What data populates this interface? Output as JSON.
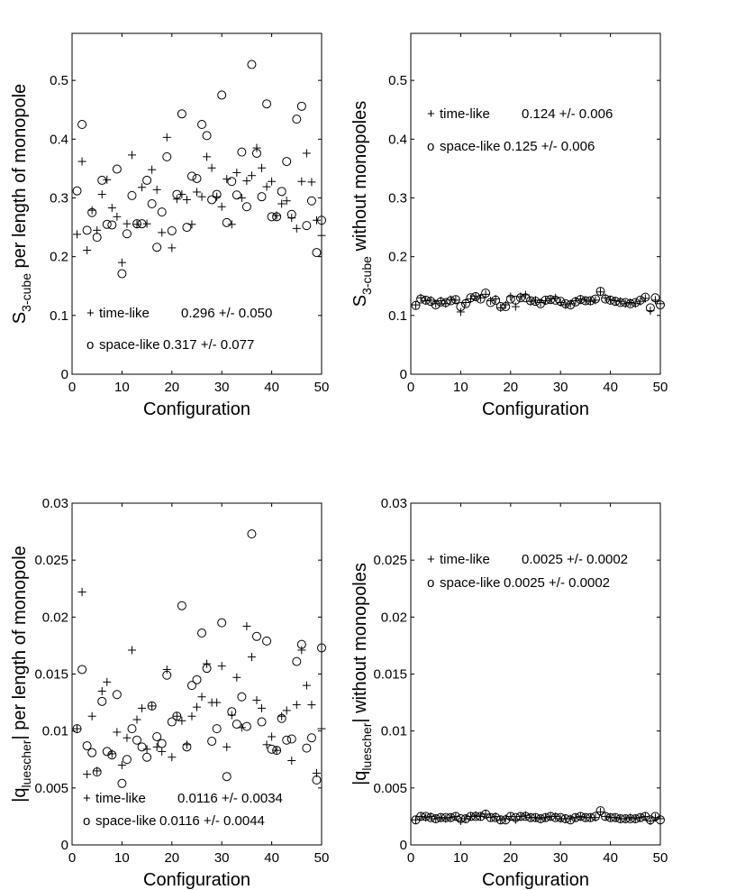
{
  "chart_data": [
    {
      "type": "scatter",
      "panel": "top-left",
      "xlabel": "Configuration",
      "ylabel": {
        "main": "S",
        "sub": "3-cube",
        "rest": " per length of monopole"
      },
      "xlim": [
        0,
        50
      ],
      "ylim": [
        0,
        0.58
      ],
      "xticks": [
        0,
        10,
        20,
        30,
        40,
        50
      ],
      "xtick_labels": [
        "0",
        "10",
        "20",
        "30",
        "40",
        "50"
      ],
      "yticks": [
        0,
        0.1,
        0.2,
        0.3,
        0.4,
        0.5
      ],
      "ytick_labels": [
        "0",
        "0.1",
        "0.2",
        "0.3",
        "0.4",
        "0.5"
      ],
      "legend": [
        {
          "marker": "+",
          "label": "time-like",
          "stat": "0.296 +/- 0.050"
        },
        {
          "marker": "o",
          "label": "space-like",
          "stat": "0.317 +/- 0.077"
        }
      ],
      "legend_position": "bottom-left",
      "series": [
        {
          "name": "time-like",
          "marker": "+",
          "x": [
            1,
            2,
            3,
            4,
            5,
            6,
            7,
            8,
            9,
            10,
            11,
            12,
            13,
            14,
            15,
            16,
            17,
            18,
            19,
            20,
            21,
            22,
            23,
            24,
            25,
            26,
            27,
            28,
            29,
            30,
            31,
            32,
            33,
            34,
            35,
            36,
            37,
            38,
            39,
            40,
            41,
            42,
            43,
            44,
            45,
            46,
            47,
            48,
            49,
            50
          ],
          "y": [
            0.238,
            0.362,
            0.211,
            0.279,
            0.245,
            0.306,
            0.331,
            0.283,
            0.268,
            0.19,
            0.256,
            0.373,
            0.255,
            0.318,
            0.256,
            0.348,
            0.314,
            0.241,
            0.403,
            0.215,
            0.298,
            0.306,
            0.297,
            0.255,
            0.31,
            0.302,
            0.37,
            0.351,
            0.302,
            0.285,
            0.332,
            0.255,
            0.343,
            0.3,
            0.329,
            0.338,
            0.385,
            0.351,
            0.319,
            0.328,
            0.27,
            0.29,
            0.295,
            0.266,
            0.248,
            0.328,
            0.376,
            0.327,
            0.262,
            0.236
          ]
        },
        {
          "name": "space-like",
          "marker": "o",
          "x": [
            1,
            2,
            3,
            4,
            5,
            6,
            7,
            8,
            9,
            10,
            11,
            12,
            13,
            14,
            15,
            16,
            17,
            18,
            19,
            20,
            21,
            22,
            23,
            24,
            25,
            26,
            27,
            28,
            29,
            30,
            31,
            32,
            33,
            34,
            35,
            36,
            37,
            38,
            39,
            40,
            41,
            42,
            43,
            44,
            45,
            46,
            47,
            48,
            49,
            50
          ],
          "y": [
            0.312,
            0.425,
            0.245,
            0.275,
            0.233,
            0.33,
            0.255,
            0.254,
            0.349,
            0.171,
            0.239,
            0.304,
            0.256,
            0.256,
            0.33,
            0.29,
            0.216,
            0.276,
            0.37,
            0.244,
            0.306,
            0.443,
            0.25,
            0.337,
            0.333,
            0.425,
            0.406,
            0.297,
            0.306,
            0.475,
            0.258,
            0.328,
            0.305,
            0.378,
            0.285,
            0.527,
            0.376,
            0.302,
            0.46,
            0.268,
            0.268,
            0.311,
            0.362,
            0.272,
            0.434,
            0.456,
            0.253,
            0.295,
            0.207,
            0.262
          ]
        }
      ]
    },
    {
      "type": "scatter",
      "panel": "top-right",
      "xlabel": "Configuration",
      "ylabel": {
        "main": "S",
        "sub": "3-cube",
        "rest": " without monopoles"
      },
      "xlim": [
        0,
        50
      ],
      "ylim": [
        0,
        0.58
      ],
      "xticks": [
        0,
        10,
        20,
        30,
        40,
        50
      ],
      "xtick_labels": [
        "0",
        "10",
        "20",
        "30",
        "40",
        "50"
      ],
      "yticks": [
        0,
        0.1,
        0.2,
        0.3,
        0.4,
        0.5
      ],
      "ytick_labels": [
        "0",
        "0.1",
        "0.2",
        "0.3",
        "0.4",
        "0.5"
      ],
      "legend": [
        {
          "marker": "+",
          "label": "time-like",
          "stat": "0.124 +/- 0.006"
        },
        {
          "marker": "o",
          "label": "space-like",
          "stat": "0.125 +/- 0.006"
        }
      ],
      "legend_position": "top-left",
      "series": [
        {
          "name": "time-like",
          "marker": "+",
          "x": [
            1,
            2,
            3,
            4,
            5,
            6,
            7,
            8,
            9,
            10,
            11,
            12,
            13,
            14,
            15,
            16,
            17,
            18,
            19,
            20,
            21,
            22,
            23,
            24,
            25,
            26,
            27,
            28,
            29,
            30,
            31,
            32,
            33,
            34,
            35,
            36,
            37,
            38,
            39,
            40,
            41,
            42,
            43,
            44,
            45,
            46,
            47,
            48,
            49,
            50
          ],
          "y": [
            0.118,
            0.13,
            0.125,
            0.126,
            0.12,
            0.125,
            0.12,
            0.127,
            0.126,
            0.106,
            0.122,
            0.128,
            0.133,
            0.13,
            0.136,
            0.125,
            0.128,
            0.113,
            0.118,
            0.132,
            0.115,
            0.132,
            0.135,
            0.124,
            0.126,
            0.122,
            0.125,
            0.128,
            0.13,
            0.122,
            0.118,
            0.12,
            0.125,
            0.128,
            0.126,
            0.124,
            0.126,
            0.14,
            0.13,
            0.127,
            0.125,
            0.124,
            0.12,
            0.122,
            0.12,
            0.124,
            0.129,
            0.108,
            0.126,
            0.12
          ]
        },
        {
          "name": "space-like",
          "marker": "o",
          "x": [
            1,
            2,
            3,
            4,
            5,
            6,
            7,
            8,
            9,
            10,
            11,
            12,
            13,
            14,
            15,
            16,
            17,
            18,
            19,
            20,
            21,
            22,
            23,
            24,
            25,
            26,
            27,
            28,
            29,
            30,
            31,
            32,
            33,
            34,
            35,
            36,
            37,
            38,
            39,
            40,
            41,
            42,
            43,
            44,
            45,
            46,
            47,
            48,
            49,
            50
          ],
          "y": [
            0.117,
            0.128,
            0.126,
            0.124,
            0.118,
            0.123,
            0.122,
            0.125,
            0.127,
            0.115,
            0.12,
            0.13,
            0.132,
            0.128,
            0.138,
            0.122,
            0.126,
            0.115,
            0.115,
            0.128,
            0.126,
            0.13,
            0.13,
            0.125,
            0.124,
            0.12,
            0.126,
            0.127,
            0.126,
            0.124,
            0.12,
            0.118,
            0.123,
            0.127,
            0.125,
            0.125,
            0.128,
            0.141,
            0.128,
            0.126,
            0.124,
            0.122,
            0.122,
            0.12,
            0.122,
            0.126,
            0.131,
            0.113,
            0.13,
            0.118
          ]
        }
      ]
    },
    {
      "type": "scatter",
      "panel": "bottom-left",
      "xlabel": "Configuration",
      "ylabel": {
        "main": "|q",
        "sub": "luescher",
        "rest": "| per length of monopole"
      },
      "xlim": [
        0,
        50
      ],
      "ylim": [
        0,
        0.03
      ],
      "xticks": [
        0,
        10,
        20,
        30,
        40,
        50
      ],
      "xtick_labels": [
        "0",
        "10",
        "20",
        "30",
        "40",
        "50"
      ],
      "yticks": [
        0,
        0.005,
        0.01,
        0.015,
        0.02,
        0.025,
        0.03
      ],
      "ytick_labels": [
        "0",
        "0.005",
        "0.01",
        "0.015",
        "0.02",
        "0.025",
        "0.03"
      ],
      "legend": [
        {
          "marker": "+",
          "label": "time-like",
          "stat": "0.0116 +/- 0.0034"
        },
        {
          "marker": "o",
          "label": "space-like",
          "stat": "0.0116 +/- 0.0044"
        }
      ],
      "legend_position": "bottom-left",
      "series": [
        {
          "name": "time-like",
          "marker": "+",
          "x": [
            1,
            2,
            3,
            4,
            5,
            6,
            7,
            8,
            9,
            10,
            11,
            12,
            13,
            14,
            15,
            16,
            17,
            18,
            19,
            20,
            21,
            22,
            23,
            24,
            25,
            26,
            27,
            28,
            29,
            30,
            31,
            32,
            33,
            34,
            35,
            36,
            37,
            38,
            39,
            40,
            41,
            42,
            43,
            44,
            45,
            46,
            47,
            48,
            49,
            50
          ],
          "y": [
            0.0102,
            0.0222,
            0.0062,
            0.0113,
            0.0065,
            0.0135,
            0.0143,
            0.008,
            0.0099,
            0.007,
            0.0094,
            0.0171,
            0.011,
            0.012,
            0.0084,
            0.0122,
            0.0086,
            0.0082,
            0.0154,
            0.0077,
            0.0113,
            0.0109,
            0.0088,
            0.0113,
            0.0121,
            0.013,
            0.0159,
            0.0125,
            0.0125,
            0.0157,
            0.0086,
            0.0114,
            0.0147,
            0.0103,
            0.0192,
            0.0165,
            0.0127,
            0.012,
            0.0088,
            0.0095,
            0.0083,
            0.0113,
            0.0118,
            0.0074,
            0.0123,
            0.0171,
            0.014,
            0.0123,
            0.0063,
            0.0102
          ]
        },
        {
          "name": "space-like",
          "marker": "o",
          "x": [
            1,
            2,
            3,
            4,
            5,
            6,
            7,
            8,
            9,
            10,
            11,
            12,
            13,
            14,
            15,
            16,
            17,
            18,
            19,
            20,
            21,
            22,
            23,
            24,
            25,
            26,
            27,
            28,
            29,
            30,
            31,
            32,
            33,
            34,
            35,
            36,
            37,
            38,
            39,
            40,
            41,
            42,
            43,
            44,
            45,
            46,
            47,
            48,
            49,
            50
          ],
          "y": [
            0.0102,
            0.0154,
            0.0087,
            0.0081,
            0.0064,
            0.0126,
            0.0082,
            0.0079,
            0.0132,
            0.0054,
            0.0075,
            0.0102,
            0.0092,
            0.0086,
            0.0077,
            0.0122,
            0.0095,
            0.0089,
            0.0149,
            0.0108,
            0.0113,
            0.021,
            0.0086,
            0.014,
            0.0145,
            0.0186,
            0.0155,
            0.0091,
            0.0102,
            0.0195,
            0.006,
            0.0117,
            0.0106,
            0.013,
            0.0104,
            0.0273,
            0.0183,
            0.0108,
            0.0179,
            0.0084,
            0.0083,
            0.0111,
            0.0092,
            0.0093,
            0.0161,
            0.0176,
            0.0085,
            0.0094,
            0.0057,
            0.0173
          ]
        }
      ]
    },
    {
      "type": "scatter",
      "panel": "bottom-right",
      "xlabel": "Configuration",
      "ylabel": {
        "main": "|q",
        "sub": "luescher",
        "rest": "| without monopoles"
      },
      "xlim": [
        0,
        50
      ],
      "ylim": [
        0,
        0.03
      ],
      "xticks": [
        0,
        10,
        20,
        30,
        40,
        50
      ],
      "xtick_labels": [
        "0",
        "10",
        "20",
        "30",
        "40",
        "50"
      ],
      "yticks": [
        0,
        0.005,
        0.01,
        0.015,
        0.02,
        0.025,
        0.03
      ],
      "ytick_labels": [
        "0",
        "0.005",
        "0.01",
        "0.015",
        "0.02",
        "0.025",
        "0.03"
      ],
      "legend": [
        {
          "marker": "+",
          "label": "time-like",
          "stat": "0.0025 +/- 0.0002"
        },
        {
          "marker": "o",
          "label": "space-like",
          "stat": "0.0025 +/- 0.0002"
        }
      ],
      "legend_position": "top-left",
      "series": [
        {
          "name": "time-like",
          "marker": "+",
          "x": [
            1,
            2,
            3,
            4,
            5,
            6,
            7,
            8,
            9,
            10,
            11,
            12,
            13,
            14,
            15,
            16,
            17,
            18,
            19,
            20,
            21,
            22,
            23,
            24,
            25,
            26,
            27,
            28,
            29,
            30,
            31,
            32,
            33,
            34,
            35,
            36,
            37,
            38,
            39,
            40,
            41,
            42,
            43,
            44,
            45,
            46,
            47,
            48,
            49,
            50
          ],
          "y": [
            0.0022,
            0.0025,
            0.0024,
            0.0025,
            0.0023,
            0.0024,
            0.0023,
            0.0024,
            0.0025,
            0.0021,
            0.0023,
            0.0025,
            0.0026,
            0.0025,
            0.0027,
            0.0024,
            0.0025,
            0.0022,
            0.0023,
            0.0025,
            0.0022,
            0.0025,
            0.0026,
            0.0024,
            0.0024,
            0.0023,
            0.0024,
            0.0025,
            0.0025,
            0.0023,
            0.0023,
            0.0023,
            0.0024,
            0.0025,
            0.0024,
            0.0024,
            0.0024,
            0.0029,
            0.0025,
            0.0024,
            0.0024,
            0.0023,
            0.0023,
            0.0024,
            0.0023,
            0.0024,
            0.0025,
            0.0021,
            0.0024,
            0.0023
          ]
        },
        {
          "name": "space-like",
          "marker": "o",
          "x": [
            1,
            2,
            3,
            4,
            5,
            6,
            7,
            8,
            9,
            10,
            11,
            12,
            13,
            14,
            15,
            16,
            17,
            18,
            19,
            20,
            21,
            22,
            23,
            24,
            25,
            26,
            27,
            28,
            29,
            30,
            31,
            32,
            33,
            34,
            35,
            36,
            37,
            38,
            39,
            40,
            41,
            42,
            43,
            44,
            45,
            46,
            47,
            48,
            49,
            50
          ],
          "y": [
            0.0022,
            0.0025,
            0.0025,
            0.0024,
            0.0023,
            0.0024,
            0.0024,
            0.0024,
            0.0025,
            0.0023,
            0.0023,
            0.0025,
            0.0025,
            0.0025,
            0.0027,
            0.0024,
            0.0024,
            0.0022,
            0.0022,
            0.0025,
            0.0024,
            0.0025,
            0.0025,
            0.0024,
            0.0024,
            0.0023,
            0.0024,
            0.0025,
            0.0024,
            0.0024,
            0.0023,
            0.0022,
            0.0024,
            0.0025,
            0.0024,
            0.0024,
            0.0025,
            0.003,
            0.0025,
            0.0024,
            0.0024,
            0.0023,
            0.0023,
            0.0023,
            0.0023,
            0.0024,
            0.0025,
            0.0022,
            0.0025,
            0.0022
          ]
        }
      ]
    }
  ]
}
